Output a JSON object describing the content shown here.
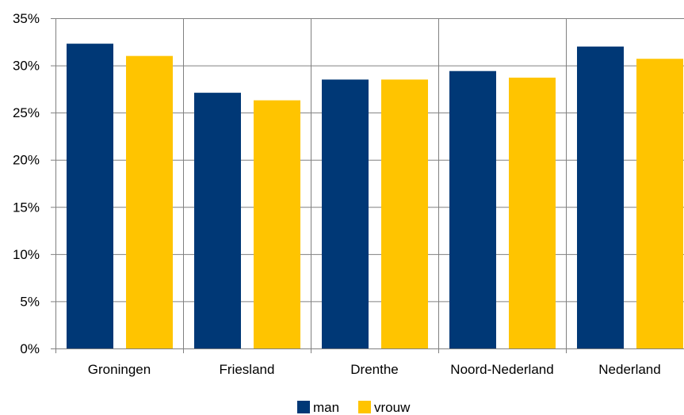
{
  "chart_data": {
    "type": "bar",
    "title": "",
    "xlabel": "",
    "ylabel": "",
    "categories": [
      "Groningen",
      "Friesland",
      "Drenthe",
      "Noord-Nederland",
      "Nederland"
    ],
    "series": [
      {
        "name": "man",
        "values": [
          32.3,
          27.1,
          28.5,
          29.4,
          32.0
        ],
        "color": "#003876"
      },
      {
        "name": "vrouw",
        "values": [
          31.0,
          26.3,
          28.5,
          28.7,
          30.7
        ],
        "color": "#FFC400"
      }
    ],
    "ylim": [
      0,
      35
    ],
    "yticks": [
      0,
      5,
      10,
      15,
      20,
      25,
      30,
      35
    ],
    "ytick_labels": [
      "0%",
      "5%",
      "10%",
      "15%",
      "20%",
      "25%",
      "30%",
      "35%"
    ],
    "grid": true,
    "grid_color": "#808080",
    "legend_position": "bottom-center"
  }
}
